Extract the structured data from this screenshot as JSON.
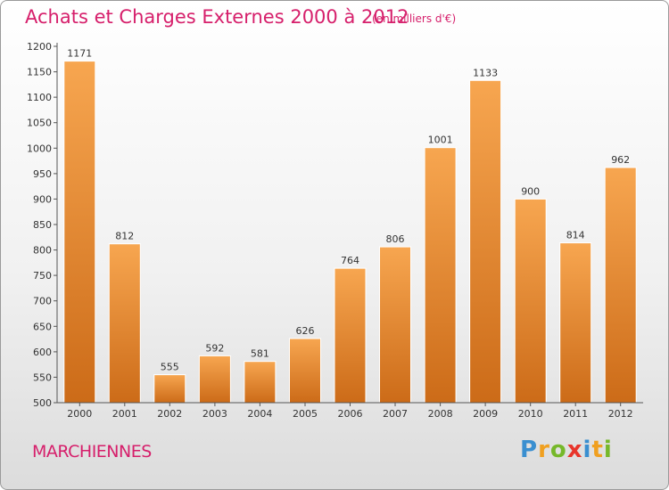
{
  "header": {
    "title": "Achats et Charges Externes 2000 à 2012",
    "subtitle": "(en milliers d'€)"
  },
  "footer": {
    "town": "MARCHIENNES",
    "logo_letters": [
      {
        "char": "P",
        "color": "#3a8fd0"
      },
      {
        "char": "r",
        "color": "#f0a020"
      },
      {
        "char": "o",
        "color": "#76b82a"
      },
      {
        "char": "x",
        "color": "#e8352b"
      },
      {
        "char": "i",
        "color": "#3a8fd0"
      },
      {
        "char": "t",
        "color": "#f0a020"
      },
      {
        "char": "i",
        "color": "#76b82a"
      }
    ]
  },
  "chart_data": {
    "type": "bar",
    "categories": [
      "2000",
      "2001",
      "2002",
      "2003",
      "2004",
      "2005",
      "2006",
      "2007",
      "2008",
      "2009",
      "2010",
      "2011",
      "2012"
    ],
    "values": [
      1171,
      812,
      555,
      592,
      581,
      626,
      764,
      806,
      1001,
      1133,
      900,
      814,
      962
    ],
    "ylim": [
      500,
      1200
    ],
    "yticks": [
      500,
      550,
      600,
      650,
      700,
      750,
      800,
      850,
      900,
      950,
      1000,
      1050,
      1100,
      1150,
      1200
    ],
    "grid": false,
    "bar_color_top": "#f7a650",
    "bar_color_bottom": "#cc6b18",
    "title": "Achats et Charges Externes 2000 à 2012"
  }
}
